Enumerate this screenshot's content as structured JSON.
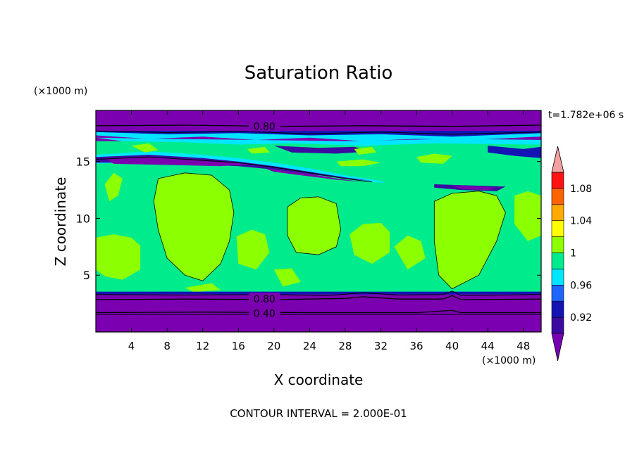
{
  "chart_data": {
    "type": "contour",
    "title": "Saturation Ratio",
    "time_label": "t=1.782e+06 s",
    "xlabel": "X coordinate",
    "ylabel": "Z coordinate",
    "x_unit": "(×1000 m)",
    "y_unit": "(×1000 m)",
    "xlim": [
      0,
      50
    ],
    "ylim": [
      0,
      19.5
    ],
    "x_ticks": [
      4,
      8,
      12,
      16,
      20,
      24,
      28,
      32,
      36,
      40,
      44,
      48
    ],
    "x_tick_labels": [
      "4",
      "8",
      "12",
      "16",
      "20",
      "24",
      "28",
      "32",
      "36",
      "40",
      "44",
      "48"
    ],
    "y_ticks": [
      5,
      10,
      15
    ],
    "y_tick_labels": [
      "5",
      "10",
      "15"
    ],
    "footer": "CONTOUR INTERVAL = 2.000E-01",
    "contour_labels": [
      {
        "text": "0.80",
        "x": 17.5,
        "y": 18.1
      },
      {
        "text": "0.80",
        "x": 17.5,
        "y": 2.9
      },
      {
        "text": "0.40",
        "x": 17.5,
        "y": 1.65
      }
    ],
    "colorbar": {
      "levels": [
        0.9,
        0.92,
        0.94,
        0.96,
        0.98,
        1.0,
        1.02,
        1.04,
        1.06,
        1.08,
        1.1
      ],
      "labels": [
        {
          "value": 0.92,
          "text": "0.92"
        },
        {
          "value": 0.96,
          "text": "0.96"
        },
        {
          "value": 1.0,
          "text": "1"
        },
        {
          "value": 1.04,
          "text": "1.04"
        },
        {
          "value": 1.08,
          "text": "1.08"
        }
      ],
      "colors": [
        "#3c0aa0",
        "#1414b4",
        "#1e64ff",
        "#00e6ff",
        "#00eb8c",
        "#8cff00",
        "#ffff00",
        "#ffaa00",
        "#ff6400",
        "#ff1414"
      ],
      "under_color": "#7800b4",
      "over_color": "#f5a0a0"
    },
    "field_colors": {
      "purple": "#7a00b0",
      "dark_blue": "#3c0aa0",
      "blue": "#1414b4",
      "mid_blue": "#1e64ff",
      "cyan": "#00e6ff",
      "green": "#00eb8c",
      "lime": "#8cff00"
    }
  }
}
